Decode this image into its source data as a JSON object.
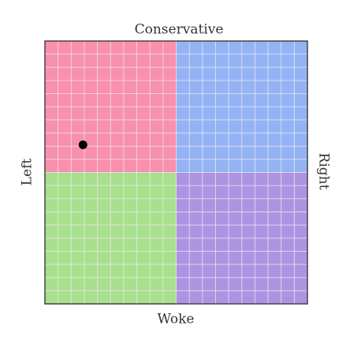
{
  "chart_data": {
    "type": "scatter",
    "axis_labels": {
      "top": "Conservative",
      "bottom": "Woke",
      "left": "Left",
      "right": "Right"
    },
    "xlim": [
      -10,
      10
    ],
    "ylim": [
      -10,
      10
    ],
    "xticks": [
      -9,
      -8,
      -7,
      -6,
      -5,
      -4,
      -3,
      -2,
      -1,
      0,
      1,
      2,
      3,
      4,
      5,
      6,
      7,
      8,
      9
    ],
    "yticks": [
      -9,
      -8,
      -7,
      -6,
      -5,
      -4,
      -3,
      -2,
      -1,
      0,
      1,
      2,
      3,
      4,
      5,
      6,
      7,
      8,
      9
    ],
    "tick_labels": false,
    "grid": true,
    "quadrant_colors": {
      "top_left": "#f990ad",
      "top_right": "#94b3f5",
      "bottom_left": "#a8e08e",
      "bottom_right": "#ad94e3"
    },
    "series": [
      {
        "color": "#000000",
        "x": [
          -7.1
        ],
        "values": [
          2.1
        ]
      }
    ]
  }
}
